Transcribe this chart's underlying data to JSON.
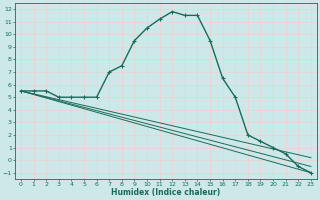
{
  "xlabel": "Humidex (Indice chaleur)",
  "bg_color": "#cde8e8",
  "grid_color": "#f0d0d0",
  "line_color": "#1a6b5a",
  "xlim": [
    -0.5,
    23.5
  ],
  "ylim": [
    -1.5,
    12.5
  ],
  "xticks": [
    0,
    1,
    2,
    3,
    4,
    5,
    6,
    7,
    8,
    9,
    10,
    11,
    12,
    13,
    14,
    15,
    16,
    17,
    18,
    19,
    20,
    21,
    22,
    23
  ],
  "yticks": [
    -1,
    0,
    1,
    2,
    3,
    4,
    5,
    6,
    7,
    8,
    9,
    10,
    11,
    12
  ],
  "curve1_x": [
    0,
    1,
    2,
    3,
    4,
    5,
    6,
    7,
    8,
    9,
    10,
    11,
    12,
    13,
    14,
    15,
    16,
    17,
    18,
    19,
    20,
    21,
    22,
    23
  ],
  "curve1_y": [
    5.5,
    5.5,
    5.5,
    5.0,
    5.0,
    5.0,
    5.0,
    7.0,
    7.5,
    9.5,
    10.5,
    11.2,
    11.8,
    11.5,
    11.5,
    9.5,
    6.5,
    5.0,
    2.0,
    1.5,
    1.0,
    0.5,
    -0.5,
    -1.0
  ],
  "curve2_x": [
    0,
    23
  ],
  "curve2_y": [
    5.5,
    -1.0
  ],
  "curve3_x": [
    0,
    23
  ],
  "curve3_y": [
    5.5,
    -0.5
  ],
  "curve4_x": [
    0,
    23
  ],
  "curve4_y": [
    5.5,
    0.2
  ]
}
